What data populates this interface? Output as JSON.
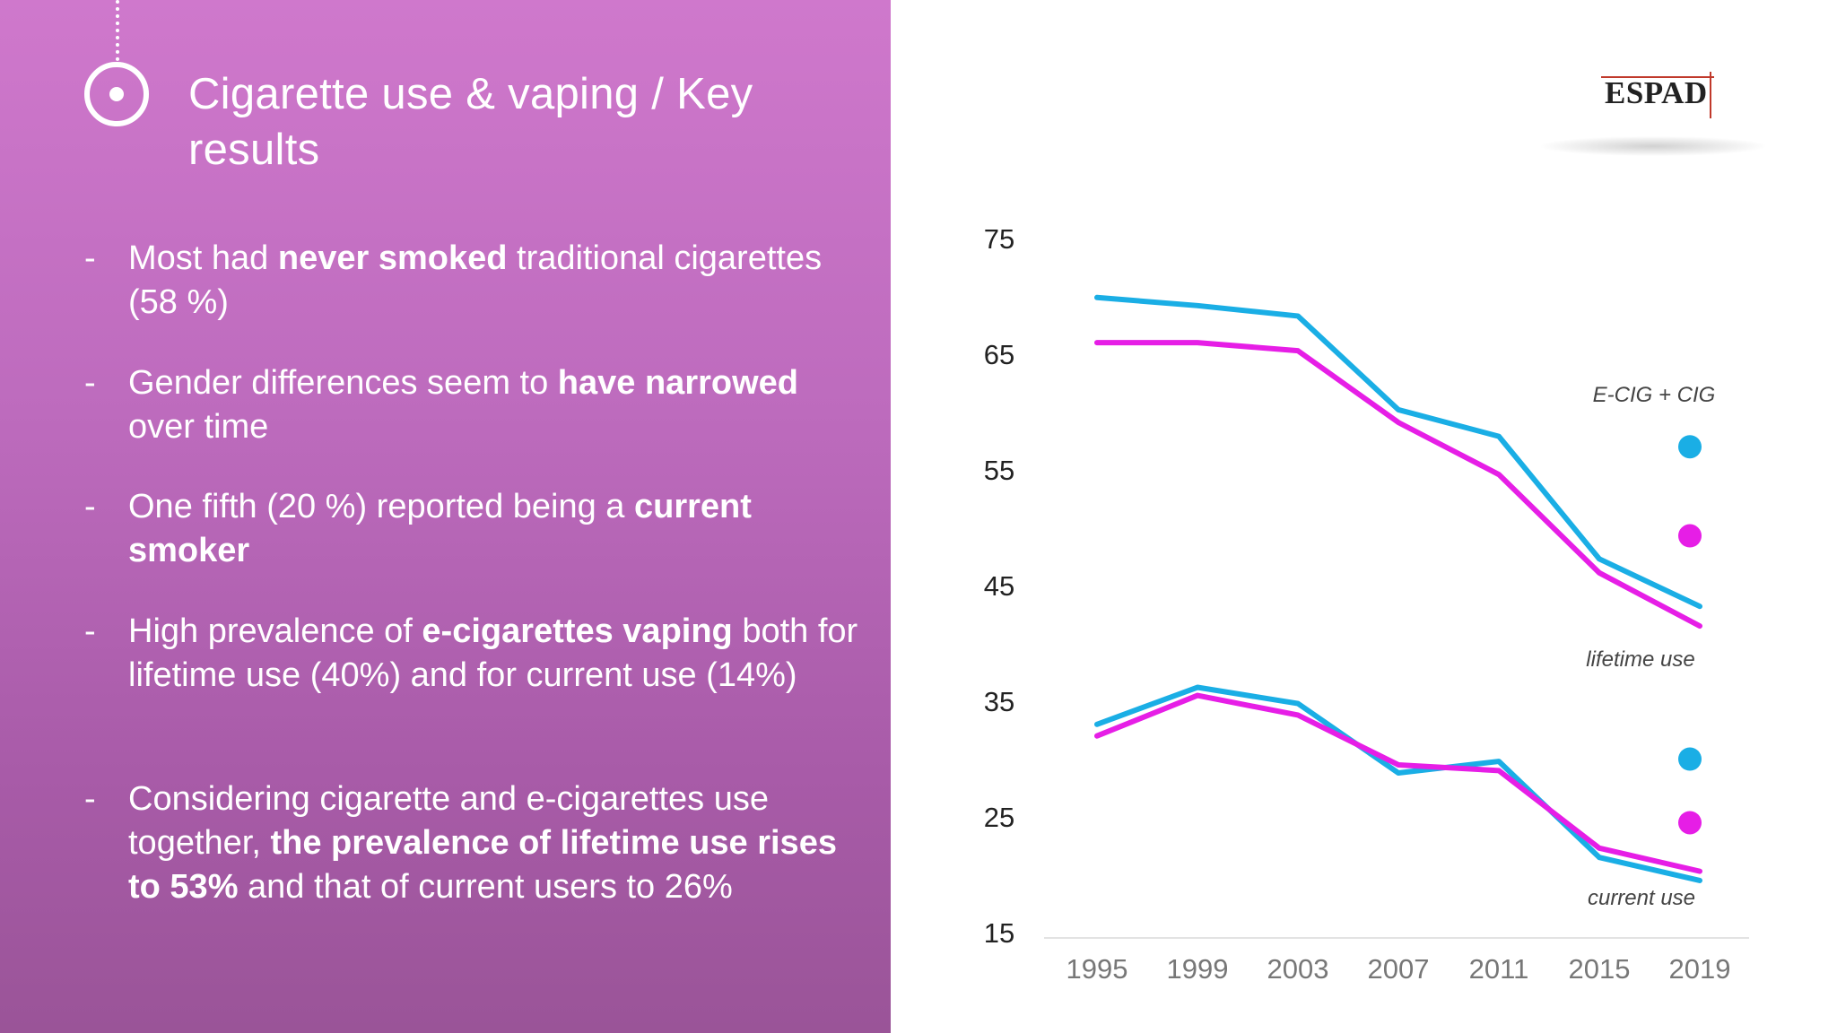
{
  "title": "Cigarette use & vaping / Key results",
  "bullets": [
    {
      "dash": "-",
      "parts": [
        {
          "t": "Most had ",
          "b": false
        },
        {
          "t": "never smoked",
          "b": true
        },
        {
          "t": " traditional cigarettes (58 %)",
          "b": false
        }
      ]
    },
    {
      "dash": "-",
      "parts": [
        {
          "t": "Gender differences seem to ",
          "b": false
        },
        {
          "t": "have narrowed",
          "b": true
        },
        {
          "t": " over time",
          "b": false
        }
      ]
    },
    {
      "dash": "-",
      "parts": [
        {
          "t": "One fifth (20 %) reported being a ",
          "b": false
        },
        {
          "t": "current smoker",
          "b": true
        }
      ]
    },
    {
      "dash": "-",
      "parts": [
        {
          "t": "High prevalence of ",
          "b": false
        },
        {
          "t": "e-cigarettes vaping",
          "b": true
        },
        {
          "t": " both for lifetime use (40%) and for current use (14%)",
          "b": false
        }
      ]
    },
    {
      "dash": "-",
      "parts": [
        {
          "t": "Considering cigarette and e-cigarettes use together, ",
          "b": false
        },
        {
          "t": "the prevalence of lifetime use rises to 53%",
          "b": true
        },
        {
          "t": " and that of current users to 26%",
          "b": false
        }
      ]
    }
  ],
  "logo": {
    "text": "ESPAD"
  },
  "colors": {
    "blue": "#1aaee5",
    "magenta": "#e61ee6",
    "panel_top": "#cf78cc",
    "panel_bottom": "#9a5498"
  },
  "chart_data": {
    "type": "line",
    "x": [
      "1995",
      "1999",
      "2003",
      "2007",
      "2011",
      "2015",
      "2019"
    ],
    "y_ticks": [
      "75",
      "65",
      "55",
      "45",
      "35",
      "25",
      "15"
    ],
    "ylim": [
      15,
      75
    ],
    "grid": false,
    "series": [
      {
        "group": "lifetime use",
        "color": "#1aaee5",
        "values": [
          69.9,
          69.2,
          68.3,
          60.2,
          57.9,
          47.3,
          43.2
        ]
      },
      {
        "group": "lifetime use",
        "color": "#e61ee6",
        "values": [
          66.0,
          66.0,
          65.3,
          59.1,
          54.6,
          46.1,
          41.5
        ]
      },
      {
        "group": "current use",
        "color": "#1aaee5",
        "values": [
          33.0,
          36.2,
          34.8,
          28.8,
          29.8,
          21.5,
          19.5
        ]
      },
      {
        "group": "current use",
        "color": "#e61ee6",
        "values": [
          32.0,
          35.5,
          33.8,
          29.5,
          29.0,
          22.3,
          20.3
        ]
      }
    ],
    "extra_points": {
      "label": "E-CIG + CIG",
      "points": [
        {
          "color": "#1aaee5",
          "value": 57.0
        },
        {
          "color": "#e61ee6",
          "value": 49.3
        },
        {
          "color": "#1aaee5",
          "value": 30.0
        },
        {
          "color": "#e61ee6",
          "value": 24.5
        }
      ]
    },
    "annotations": [
      "E-CIG + CIG",
      "lifetime use",
      "current use"
    ]
  }
}
